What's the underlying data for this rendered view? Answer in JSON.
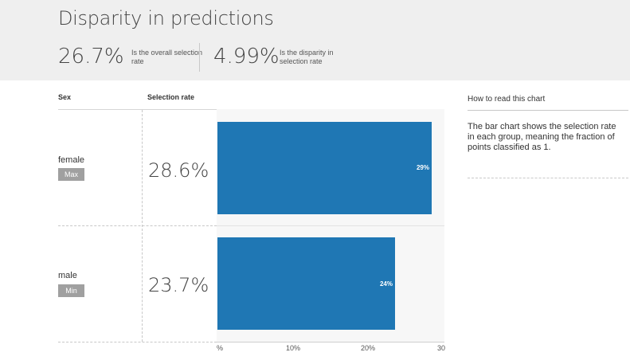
{
  "header": {
    "title": "Disparity in predictions",
    "metrics": [
      {
        "value": "26.7%",
        "caption": "Is the overall selection rate"
      },
      {
        "value": "4.99%",
        "caption": "Is the disparity in selection rate"
      }
    ]
  },
  "table": {
    "col_group": "Sex",
    "col_rate": "Selection rate",
    "rows": [
      {
        "group": "female",
        "badge": "Max",
        "rate": "28.6%",
        "bar_label": "29%"
      },
      {
        "group": "male",
        "badge": "Min",
        "rate": "23.7%",
        "bar_label": "24%"
      }
    ]
  },
  "chart_data": {
    "type": "bar",
    "orientation": "horizontal",
    "categories": [
      "female",
      "male"
    ],
    "values": [
      28.6,
      23.7
    ],
    "data_labels": [
      "29%",
      "24%"
    ],
    "xlim": [
      0,
      30
    ],
    "x_ticks": [
      "%",
      "10%",
      "20%",
      "30"
    ],
    "color": "#1f77b4"
  },
  "help": {
    "title": "How to read this chart",
    "text": "The bar chart shows the selection rate in each group, meaning the fraction of points classified as 1."
  }
}
